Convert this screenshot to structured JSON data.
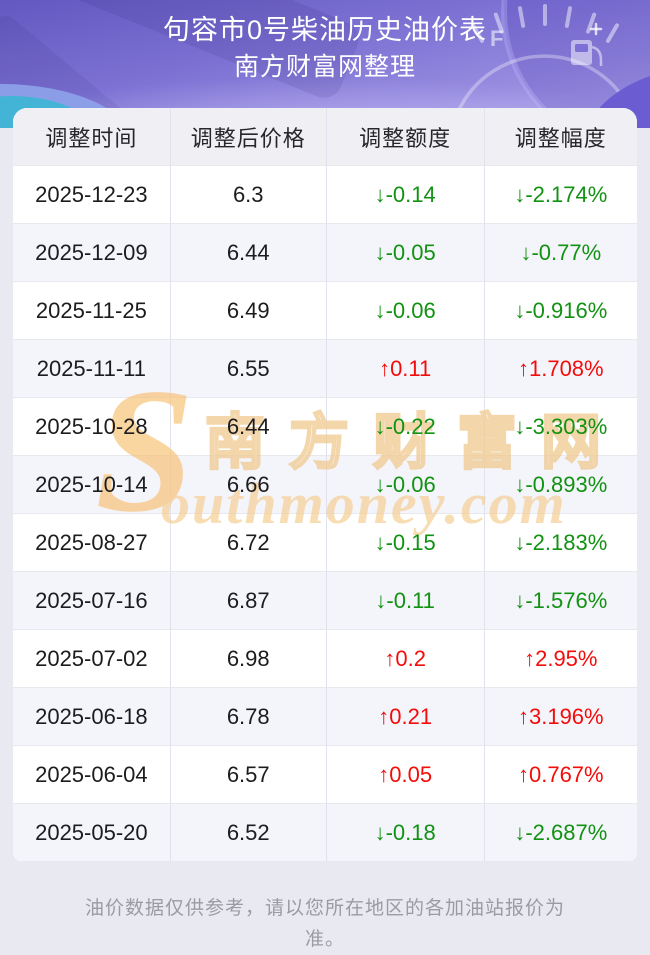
{
  "header": {
    "title": "句容市0号柴油历史油价表",
    "subtitle": "南方财富网整理"
  },
  "table": {
    "columns": [
      "调整时间",
      "调整后价格",
      "调整额度",
      "调整幅度"
    ],
    "arrow_up": "↑",
    "arrow_down": "↓",
    "colors": {
      "up": "#f30d0a",
      "down": "#129212"
    },
    "rows": [
      {
        "date": "2025-12-23",
        "price": "6.3",
        "change": "-0.14",
        "pct": "-2.174%",
        "dir": "down"
      },
      {
        "date": "2025-12-09",
        "price": "6.44",
        "change": "-0.05",
        "pct": "-0.77%",
        "dir": "down"
      },
      {
        "date": "2025-11-25",
        "price": "6.49",
        "change": "-0.06",
        "pct": "-0.916%",
        "dir": "down"
      },
      {
        "date": "2025-11-11",
        "price": "6.55",
        "change": "0.11",
        "pct": "1.708%",
        "dir": "up"
      },
      {
        "date": "2025-10-28",
        "price": "6.44",
        "change": "-0.22",
        "pct": "-3.303%",
        "dir": "down"
      },
      {
        "date": "2025-10-14",
        "price": "6.66",
        "change": "-0.06",
        "pct": "-0.893%",
        "dir": "down"
      },
      {
        "date": "2025-08-27",
        "price": "6.72",
        "change": "-0.15",
        "pct": "-2.183%",
        "dir": "down"
      },
      {
        "date": "2025-07-16",
        "price": "6.87",
        "change": "-0.11",
        "pct": "-1.576%",
        "dir": "down"
      },
      {
        "date": "2025-07-02",
        "price": "6.98",
        "change": "0.2",
        "pct": "2.95%",
        "dir": "up"
      },
      {
        "date": "2025-06-18",
        "price": "6.78",
        "change": "0.21",
        "pct": "3.196%",
        "dir": "up"
      },
      {
        "date": "2025-06-04",
        "price": "6.57",
        "change": "0.05",
        "pct": "0.767%",
        "dir": "up"
      },
      {
        "date": "2025-05-20",
        "price": "6.52",
        "change": "-0.18",
        "pct": "-2.687%",
        "dir": "down"
      }
    ]
  },
  "watermark": {
    "s": "S",
    "cn": "南方财富网",
    "en": "outhmoney.com"
  },
  "footer": {
    "note": "油价数据仅供参考，请以您所在地区的各加油站报价为准。"
  },
  "chart_data": {
    "type": "table",
    "title": "句容市0号柴油历史油价表",
    "subtitle": "南方财富网整理",
    "columns": [
      "调整时间",
      "调整后价格",
      "调整额度",
      "调整幅度"
    ],
    "rows": [
      [
        "2025-12-23",
        6.3,
        -0.14,
        "-2.174%"
      ],
      [
        "2025-12-09",
        6.44,
        -0.05,
        "-0.77%"
      ],
      [
        "2025-11-25",
        6.49,
        -0.06,
        "-0.916%"
      ],
      [
        "2025-11-11",
        6.55,
        0.11,
        "1.708%"
      ],
      [
        "2025-10-28",
        6.44,
        -0.22,
        "-3.303%"
      ],
      [
        "2025-10-14",
        6.66,
        -0.06,
        "-0.893%"
      ],
      [
        "2025-08-27",
        6.72,
        -0.15,
        "-2.183%"
      ],
      [
        "2025-07-16",
        6.87,
        -0.11,
        "-1.576%"
      ],
      [
        "2025-07-02",
        6.98,
        0.2,
        "2.95%"
      ],
      [
        "2025-06-18",
        6.78,
        0.21,
        "3.196%"
      ],
      [
        "2025-06-04",
        6.57,
        0.05,
        "0.767%"
      ],
      [
        "2025-05-20",
        6.52,
        -0.18,
        "-2.687%"
      ]
    ],
    "legend": {
      "up_color": "#f30d0a",
      "down_color": "#129212"
    }
  }
}
